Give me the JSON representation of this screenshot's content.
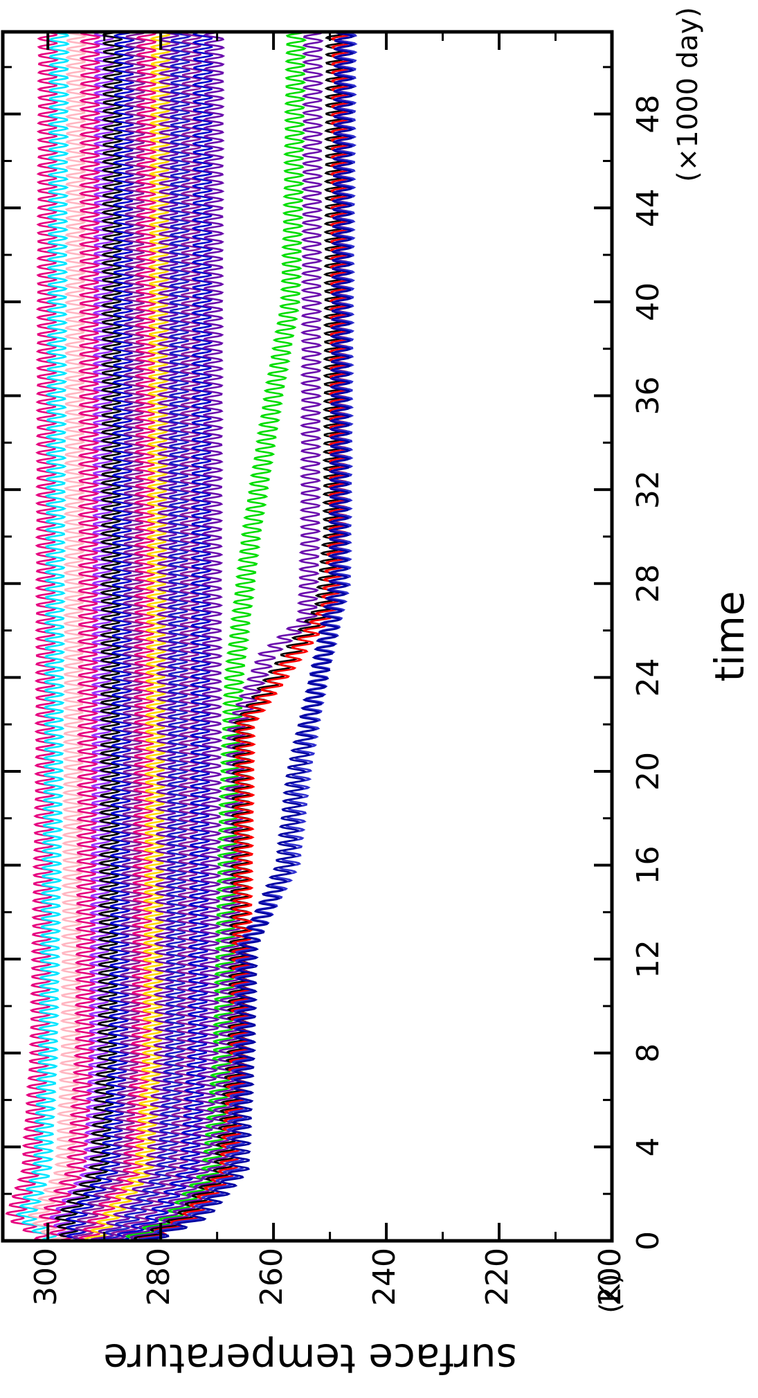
{
  "chart_data": {
    "type": "line",
    "title": "",
    "xlabel": "time",
    "xunit": "(×1000 day)",
    "ylabel": "surface temperature",
    "yunit": "(K)",
    "xlim": [
      0,
      51.5
    ],
    "ylim": [
      200,
      308
    ],
    "xticks": [
      0,
      4,
      8,
      12,
      16,
      20,
      24,
      28,
      32,
      36,
      40,
      44,
      48
    ],
    "xtick_labels": [
      "0",
      "4",
      "8",
      "12",
      "16",
      "20",
      "24",
      "28",
      "32",
      "36",
      "40",
      "44",
      "48"
    ],
    "yticks": [
      200,
      220,
      240,
      260,
      280,
      300
    ],
    "ytick_labels": [
      "200",
      "220",
      "240",
      "260",
      "280",
      "300"
    ],
    "grid": false,
    "legend": "none",
    "oscillation_period_kday": 0.36,
    "series": [
      {
        "color": "#e6007e",
        "x": [
          0,
          1,
          3,
          8,
          20,
          51.5
        ],
        "y": [
          300,
          306,
          303,
          301.5,
          300.5,
          300
        ]
      },
      {
        "color": "#00e5ff",
        "x": [
          0,
          1,
          3,
          8,
          20,
          51.5
        ],
        "y": [
          299,
          304,
          301,
          300,
          299,
          298
        ]
      },
      {
        "color": "#ffb6c1",
        "x": [
          0,
          1,
          3,
          8,
          20,
          51.5
        ],
        "y": [
          298,
          302,
          297,
          296,
          295.5,
          295
        ]
      },
      {
        "color": "#e6007e",
        "x": [
          0,
          1,
          3,
          8,
          20,
          51.5
        ],
        "y": [
          297,
          300,
          295,
          293.5,
          293,
          292.5
        ]
      },
      {
        "color": "#9b30ff",
        "x": [
          0,
          1,
          3,
          8,
          20,
          51.5
        ],
        "y": [
          296,
          298,
          292,
          291,
          290.5,
          290
        ]
      },
      {
        "color": "#000000",
        "x": [
          0,
          1,
          3,
          8,
          20,
          51.5
        ],
        "y": [
          296,
          297,
          291,
          289.5,
          289,
          288.5
        ]
      },
      {
        "color": "#0000cd",
        "x": [
          0,
          1,
          3,
          8,
          20,
          51.5
        ],
        "y": [
          295,
          295,
          289,
          287.5,
          287,
          286.5
        ]
      },
      {
        "color": "#7e1e9c",
        "x": [
          0,
          1,
          3,
          8,
          20,
          51.5
        ],
        "y": [
          294,
          293,
          287,
          285.5,
          285,
          284.5
        ]
      },
      {
        "color": "#e6007e",
        "x": [
          0,
          1,
          3,
          8,
          20,
          51.5
        ],
        "y": [
          293,
          291,
          285,
          283.5,
          283,
          282.5
        ]
      },
      {
        "color": "#ffd700",
        "x": [
          0,
          1,
          3,
          8,
          20,
          51.5
        ],
        "y": [
          292,
          289,
          283,
          281.5,
          281,
          280
        ]
      },
      {
        "color": "#6a0dad",
        "x": [
          0,
          1,
          3,
          8,
          20,
          51.5
        ],
        "y": [
          291,
          287,
          281,
          279.5,
          279,
          278.5
        ]
      },
      {
        "color": "#1e1ec8",
        "x": [
          0,
          1,
          3,
          8,
          20,
          51.5
        ],
        "y": [
          290,
          285,
          279,
          277.5,
          277,
          276.5
        ]
      },
      {
        "color": "#8b1a9e",
        "x": [
          0,
          1,
          3,
          8,
          20,
          51.5
        ],
        "y": [
          289,
          283,
          277,
          275.5,
          275,
          274.5
        ]
      },
      {
        "color": "#0000cd",
        "x": [
          0,
          1,
          3,
          8,
          20,
          51.5
        ],
        "y": [
          288,
          281,
          275,
          273.5,
          273,
          272.5
        ]
      },
      {
        "color": "#6a0dad",
        "x": [
          0,
          1,
          3,
          8,
          20,
          51.5
        ],
        "y": [
          287,
          279,
          273,
          271.5,
          271,
          270.5
        ]
      },
      {
        "color": "#00dd00",
        "x": [
          0,
          1,
          3,
          8,
          18,
          24,
          30,
          36,
          40,
          44,
          51.5
        ],
        "y": [
          286,
          278,
          271,
          269,
          268,
          267,
          264,
          260,
          257,
          256.5,
          256
        ]
      },
      {
        "color": "#6a0dad",
        "x": [
          0,
          1,
          3,
          8,
          14,
          22,
          25,
          26.5,
          30,
          51.5
        ],
        "y": [
          285,
          277,
          270,
          268,
          267.5,
          266.5,
          261,
          254,
          253.5,
          253
        ]
      },
      {
        "color": "#000000",
        "x": [
          0,
          1,
          3,
          8,
          14,
          22,
          25,
          27,
          30,
          51.5
        ],
        "y": [
          284,
          276,
          269,
          266.5,
          266,
          265.5,
          257,
          251,
          249.5,
          249
        ]
      },
      {
        "color": "#ff0000",
        "x": [
          0,
          1,
          3,
          8,
          14,
          22,
          25,
          27,
          30,
          51.5
        ],
        "y": [
          283,
          275,
          268,
          266,
          265.5,
          265,
          256,
          250,
          248.5,
          248
        ]
      },
      {
        "color": "#3030d0",
        "x": [
          0,
          1,
          3,
          8,
          12.5,
          16,
          20,
          24,
          28,
          51.5
        ],
        "y": [
          283,
          274,
          267,
          265.5,
          265,
          257,
          255,
          252,
          248,
          247
        ]
      },
      {
        "color": "#0000a0",
        "x": [
          0,
          1,
          3,
          8,
          12.5,
          16,
          20,
          24,
          28,
          51.5
        ],
        "y": [
          282,
          273,
          266,
          265,
          264.5,
          258,
          256,
          252,
          248.5,
          247.5
        ]
      }
    ]
  }
}
